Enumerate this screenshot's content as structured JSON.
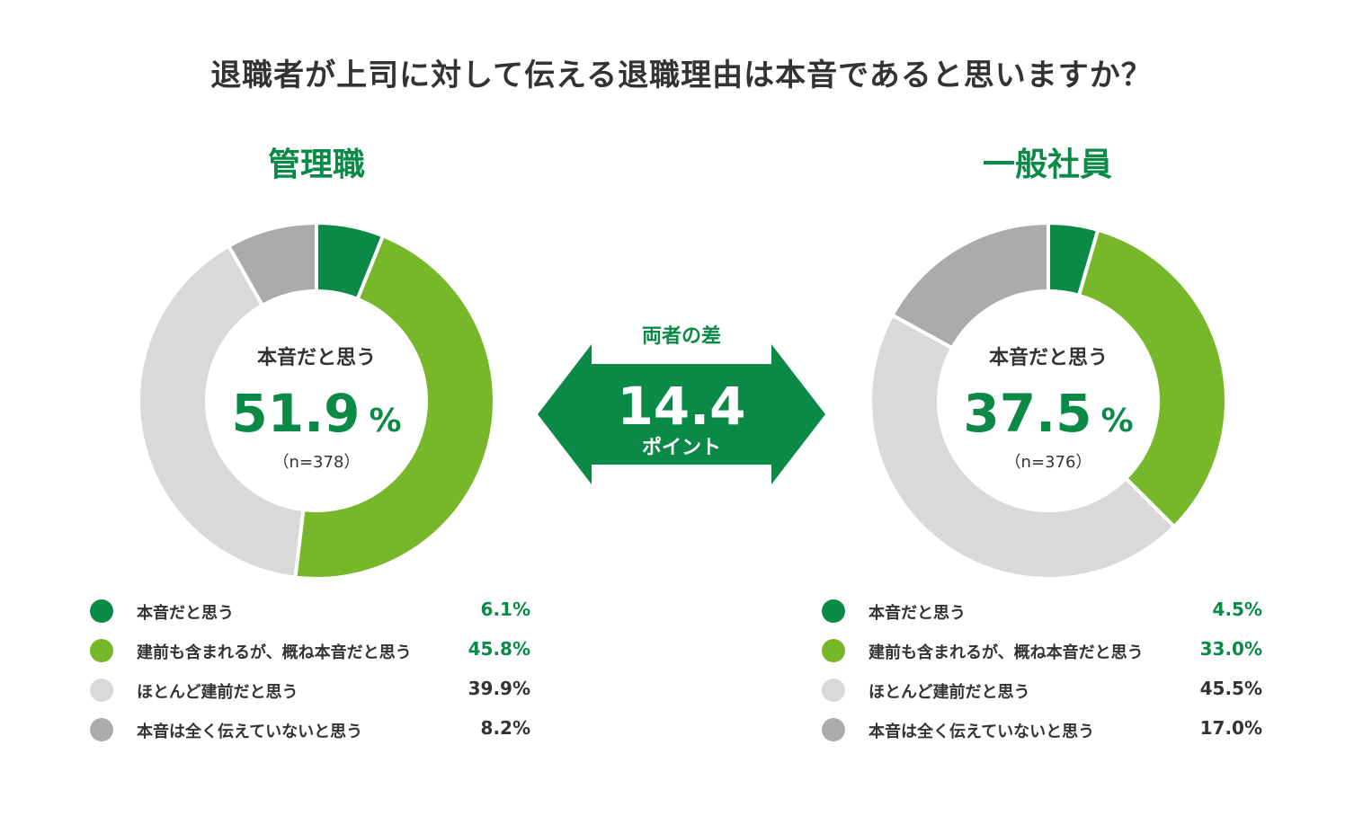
{
  "title": "退職者が上司に対して伝える退職理由は本音であると思いますか？",
  "difference": {
    "label": "両者の差",
    "value": "14.4",
    "unit": "ポイント"
  },
  "colors": {
    "honne": "#0a8a46",
    "mostly_honne": "#76b82a",
    "mostly_tatemae": "#d9d9d9",
    "not_honne": "#ababab"
  },
  "chart_data": [
    {
      "type": "pie",
      "title": "管理職",
      "center": {
        "label": "本音だと思う",
        "value": "51.9",
        "unit": "%",
        "n": "（n=378）"
      },
      "categories": [
        "本音だと思う",
        "建前も含まれるが、概ね本音だと思う",
        "ほとんど建前だと思う",
        "本音は全く伝えていないと思う"
      ],
      "values": [
        6.1,
        45.8,
        39.9,
        8.2
      ],
      "value_labels": [
        "6.1%",
        "45.8%",
        "39.9%",
        "8.2%"
      ]
    },
    {
      "type": "pie",
      "title": "一般社員",
      "center": {
        "label": "本音だと思う",
        "value": "37.5",
        "unit": "%",
        "n": "（n=376）"
      },
      "categories": [
        "本音だと思う",
        "建前も含まれるが、概ね本音だと思う",
        "ほとんど建前だと思う",
        "本音は全く伝えていないと思う"
      ],
      "values": [
        4.5,
        33.0,
        45.5,
        17.0
      ],
      "value_labels": [
        "4.5%",
        "33.0%",
        "45.5%",
        "17.0%"
      ]
    }
  ]
}
